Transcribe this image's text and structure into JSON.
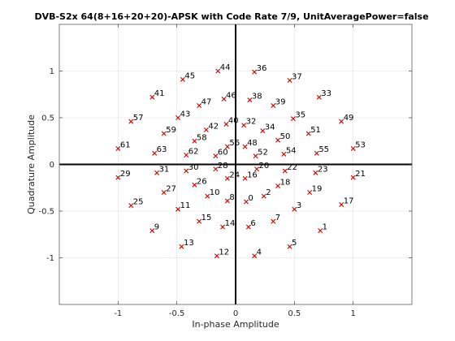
{
  "chart_data": {
    "type": "scatter",
    "title": "DVB-S2x 64(8+16+20+20)-APSK with Code Rate 7/9, UnitAveragePower=false",
    "xlabel": "In-phase Amplitude",
    "ylabel": "Quadrature Amplitude",
    "xlim": [
      -1.5,
      1.5
    ],
    "ylim": [
      -1.5,
      1.5
    ],
    "xticks": [
      -1,
      -0.5,
      0,
      0.5,
      1
    ],
    "yticks": [
      -1,
      -0.5,
      0,
      0.5,
      1
    ],
    "xtick_labels": [
      "-1",
      "-0.5",
      "0",
      "0.5",
      "1"
    ],
    "ytick_labels": [
      "-1",
      "-0.5",
      "0",
      "0.5",
      "1"
    ],
    "grid": true,
    "marker": "x",
    "marker_color": "#d40000",
    "points": [
      {
        "label": "0",
        "x": 0.09,
        "y": -0.4
      },
      {
        "label": "1",
        "x": 0.72,
        "y": -0.71
      },
      {
        "label": "2",
        "x": 0.24,
        "y": -0.34
      },
      {
        "label": "3",
        "x": 0.5,
        "y": -0.48
      },
      {
        "label": "4",
        "x": 0.16,
        "y": -0.98
      },
      {
        "label": "5",
        "x": 0.46,
        "y": -0.88
      },
      {
        "label": "6",
        "x": 0.11,
        "y": -0.67
      },
      {
        "label": "7",
        "x": 0.32,
        "y": -0.61
      },
      {
        "label": "8",
        "x": -0.07,
        "y": -0.39
      },
      {
        "label": "9",
        "x": -0.71,
        "y": -0.71
      },
      {
        "label": "10",
        "x": -0.24,
        "y": -0.34
      },
      {
        "label": "11",
        "x": -0.49,
        "y": -0.48
      },
      {
        "label": "12",
        "x": -0.16,
        "y": -0.98
      },
      {
        "label": "13",
        "x": -0.46,
        "y": -0.88
      },
      {
        "label": "14",
        "x": -0.11,
        "y": -0.67
      },
      {
        "label": "15",
        "x": -0.31,
        "y": -0.61
      },
      {
        "label": "16",
        "x": 0.08,
        "y": -0.15
      },
      {
        "label": "17",
        "x": 0.9,
        "y": -0.43
      },
      {
        "label": "18",
        "x": 0.36,
        "y": -0.23
      },
      {
        "label": "19",
        "x": 0.63,
        "y": -0.3
      },
      {
        "label": "20",
        "x": 0.18,
        "y": -0.05
      },
      {
        "label": "21",
        "x": 1.0,
        "y": -0.14
      },
      {
        "label": "22",
        "x": 0.42,
        "y": -0.07
      },
      {
        "label": "23",
        "x": 0.68,
        "y": -0.09
      },
      {
        "label": "24",
        "x": -0.07,
        "y": -0.15
      },
      {
        "label": "25",
        "x": -0.89,
        "y": -0.44
      },
      {
        "label": "26",
        "x": -0.35,
        "y": -0.22
      },
      {
        "label": "27",
        "x": -0.61,
        "y": -0.3
      },
      {
        "label": "28",
        "x": -0.17,
        "y": -0.05
      },
      {
        "label": "29",
        "x": -1.0,
        "y": -0.14
      },
      {
        "label": "30",
        "x": -0.42,
        "y": -0.07
      },
      {
        "label": "31",
        "x": -0.67,
        "y": -0.09
      },
      {
        "label": "32",
        "x": 0.07,
        "y": 0.42
      },
      {
        "label": "33",
        "x": 0.71,
        "y": 0.72
      },
      {
        "label": "34",
        "x": 0.23,
        "y": 0.36
      },
      {
        "label": "35",
        "x": 0.49,
        "y": 0.49
      },
      {
        "label": "36",
        "x": 0.16,
        "y": 0.99
      },
      {
        "label": "37",
        "x": 0.46,
        "y": 0.9
      },
      {
        "label": "38",
        "x": 0.12,
        "y": 0.69
      },
      {
        "label": "39",
        "x": 0.32,
        "y": 0.63
      },
      {
        "label": "40",
        "x": -0.08,
        "y": 0.43
      },
      {
        "label": "41",
        "x": -0.71,
        "y": 0.72
      },
      {
        "label": "42",
        "x": -0.25,
        "y": 0.37
      },
      {
        "label": "43",
        "x": -0.49,
        "y": 0.5
      },
      {
        "label": "44",
        "x": -0.15,
        "y": 1.0
      },
      {
        "label": "45",
        "x": -0.45,
        "y": 0.91
      },
      {
        "label": "46",
        "x": -0.1,
        "y": 0.7
      },
      {
        "label": "47",
        "x": -0.31,
        "y": 0.63
      },
      {
        "label": "48",
        "x": 0.08,
        "y": 0.19
      },
      {
        "label": "49",
        "x": 0.9,
        "y": 0.46
      },
      {
        "label": "50",
        "x": 0.36,
        "y": 0.26
      },
      {
        "label": "51",
        "x": 0.62,
        "y": 0.33
      },
      {
        "label": "52",
        "x": 0.17,
        "y": 0.09
      },
      {
        "label": "53",
        "x": 1.0,
        "y": 0.17
      },
      {
        "label": "54",
        "x": 0.41,
        "y": 0.11
      },
      {
        "label": "55",
        "x": 0.69,
        "y": 0.12
      },
      {
        "label": "56",
        "x": -0.07,
        "y": 0.19
      },
      {
        "label": "57",
        "x": -0.89,
        "y": 0.46
      },
      {
        "label": "58",
        "x": -0.35,
        "y": 0.25
      },
      {
        "label": "59",
        "x": -0.61,
        "y": 0.33
      },
      {
        "label": "60",
        "x": -0.17,
        "y": 0.09
      },
      {
        "label": "61",
        "x": -1.0,
        "y": 0.17
      },
      {
        "label": "62",
        "x": -0.42,
        "y": 0.1
      },
      {
        "label": "63",
        "x": -0.69,
        "y": 0.12
      }
    ]
  }
}
